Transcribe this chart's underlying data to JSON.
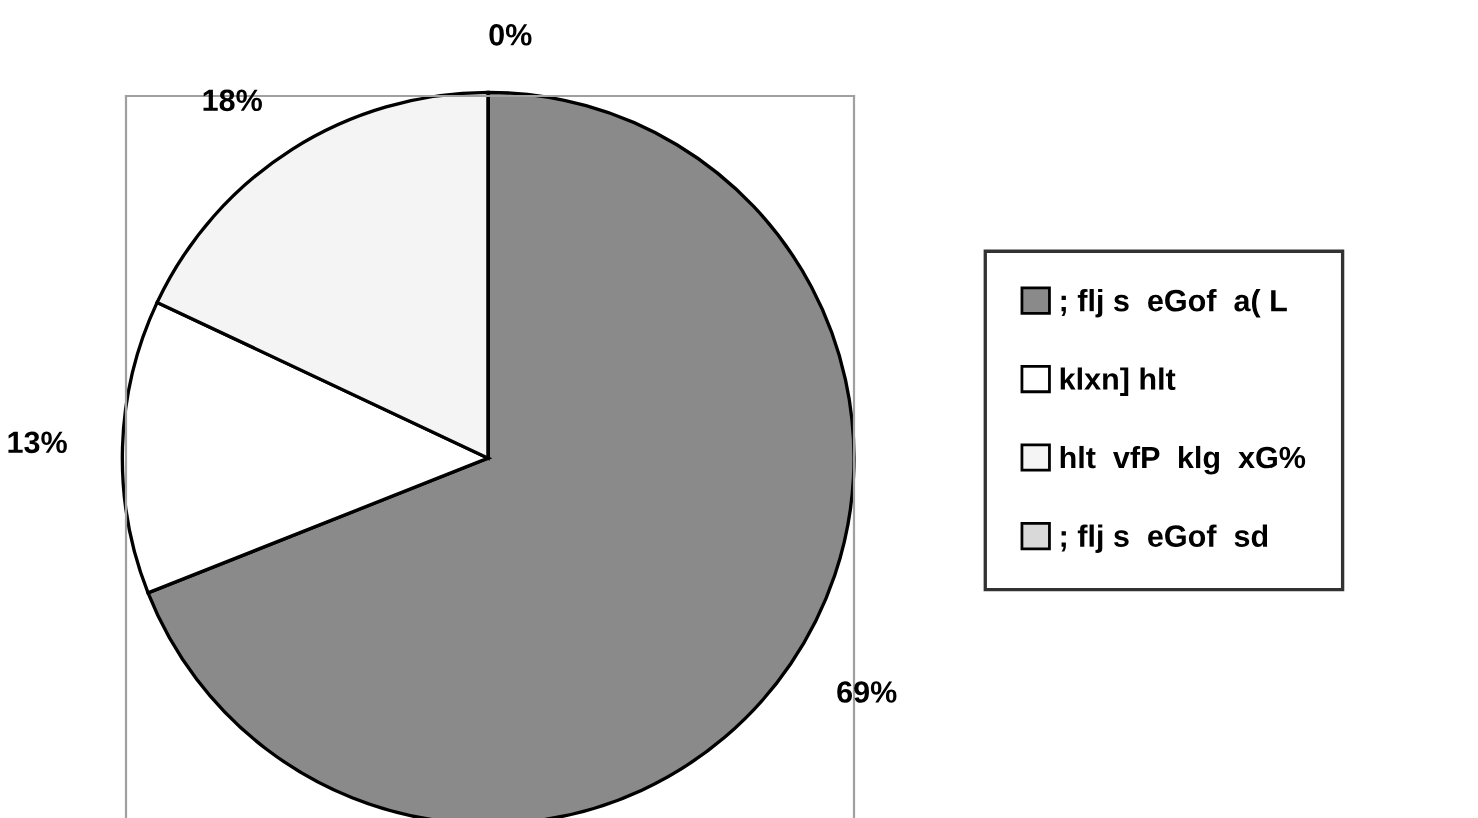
{
  "chart_data": {
    "type": "pie",
    "categories": [
      "; flj s  eGof  a( L",
      "klxn] hlt",
      "hlt  vfP  klg  xG%",
      "; flj s  eGof  sd"
    ],
    "values": [
      69,
      13,
      18,
      0
    ],
    "colors": [
      "#8a8a8a",
      "#ffffff",
      "#f4f4f4",
      "#d9d9d9"
    ],
    "value_labels": [
      "69%",
      "13%",
      "18%",
      "0%"
    ],
    "legend": "right"
  }
}
